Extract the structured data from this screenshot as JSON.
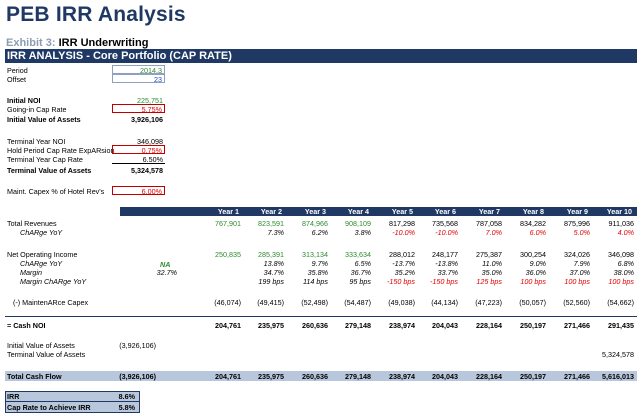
{
  "title": "PEB IRR Analysis",
  "exhibit": {
    "prefix": "Exhibit 3:",
    "name": "IRR Underwriting"
  },
  "section": "IRR ANALYSIS - Core Portfolio (CAP RATE)",
  "inputs": {
    "period_label": "Period",
    "period_value": "2014.3",
    "offset_label": "Offset",
    "offset_value": "23",
    "initial_noi_label": "Initial NOI",
    "initial_noi_value": "225,751",
    "going_in_cap_label": "Going-in Cap Rate",
    "going_in_cap_value": "5.75%",
    "initial_value_label": "Initial Value of Assets",
    "initial_value_value": "3,926,106",
    "terminal_noi_label": "Terminal Year NOI",
    "terminal_noi_value": "346,098",
    "hold_exp_label": "Hold Period Cap Rate ExpARsion",
    "hold_exp_value": "0.75%",
    "terminal_cap_label": "Terminal Year Cap Rate",
    "terminal_cap_value": "6.50%",
    "terminal_value_label": "Terminal Value of Assets",
    "terminal_value_value": "5,324,578",
    "capex_label": "Maint. Capex % of Hotel Rev's",
    "capex_value": "6.00%"
  },
  "years": [
    "Year 1",
    "Year 2",
    "Year 3",
    "Year 4",
    "Year 5",
    "Year 6",
    "Year 7",
    "Year 8",
    "Year 9",
    "Year 10"
  ],
  "rows": {
    "total_revenues": {
      "label": "Total Revenues",
      "values": [
        "767,901",
        "823,591",
        "874,966",
        "908,109",
        "817,298",
        "735,568",
        "787,058",
        "834,282",
        "875,996",
        "911,036"
      ]
    },
    "rev_change": {
      "label": "ChARge YoY",
      "values": [
        "",
        "7.3%",
        "6.2%",
        "3.8%",
        "-10.0%",
        "-10.0%",
        "7.0%",
        "6.0%",
        "5.0%",
        "4.0%"
      ]
    },
    "noi": {
      "label": "Net Operating Income",
      "values": [
        "250,835",
        "285,391",
        "313,134",
        "333,634",
        "288,012",
        "248,177",
        "275,387",
        "300,254",
        "324,026",
        "346,098"
      ]
    },
    "noi_change": {
      "label": "ChARge YoY",
      "na": "NA",
      "values": [
        "",
        "13.8%",
        "9.7%",
        "6.5%",
        "-13.7%",
        "-13.8%",
        "11.0%",
        "9.0%",
        "7.9%",
        "6.8%"
      ]
    },
    "margin": {
      "label": "Margin",
      "first": "32.7%",
      "values": [
        "",
        "34.7%",
        "35.8%",
        "36.7%",
        "35.2%",
        "33.7%",
        "35.0%",
        "36.0%",
        "37.0%",
        "38.0%"
      ]
    },
    "margin_change": {
      "label": "Margin ChARge YoY",
      "values": [
        "",
        "199 bps",
        "114 bps",
        "95 bps",
        "-150 bps",
        "-150 bps",
        "125 bps",
        "100 bps",
        "100 bps",
        "100 bps"
      ]
    },
    "capex": {
      "label": "(-) MaintenARce Capex",
      "values": [
        "(46,074)",
        "(49,415)",
        "(52,498)",
        "(54,487)",
        "(49,038)",
        "(44,134)",
        "(47,223)",
        "(50,057)",
        "(52,560)",
        "(54,662)"
      ]
    },
    "cash_noi": {
      "label": "= Cash NOI",
      "values": [
        "204,761",
        "235,975",
        "260,636",
        "279,148",
        "238,974",
        "204,043",
        "228,164",
        "250,197",
        "271,466",
        "291,435"
      ]
    },
    "initial_val": {
      "label": "Initial Value of Assets",
      "first": "(3,926,106)"
    },
    "terminal_val": {
      "label": "Terminal Value of Assets",
      "last": "5,324,578"
    },
    "total_cf": {
      "label": "Total Cash Flow",
      "first": "(3,926,106)",
      "values": [
        "204,761",
        "235,975",
        "260,636",
        "279,148",
        "238,974",
        "204,043",
        "228,164",
        "250,197",
        "271,466",
        "5,616,013"
      ]
    }
  },
  "irr": {
    "irr_label": "IRR",
    "irr_value": "8.6%",
    "cap_label": "Cap Rate to Achieve IRR",
    "cap_value": "5.8%"
  },
  "colors": {
    "navy": "#1f3864",
    "band": "#b8c7dc",
    "green": "#2e8b2e",
    "red": "#e00000",
    "blue": "#1f4fbf"
  }
}
